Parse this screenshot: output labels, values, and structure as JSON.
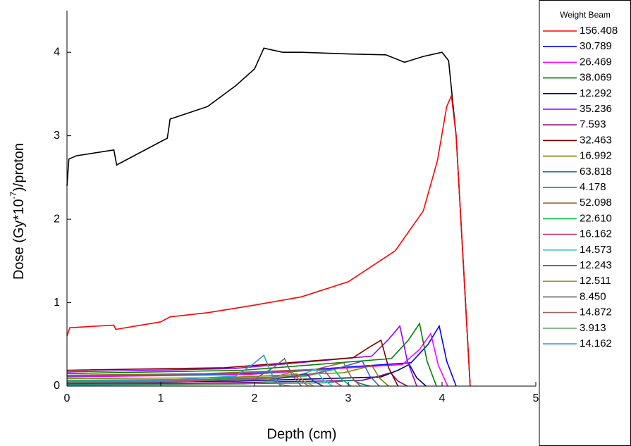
{
  "chart_data": {
    "type": "line",
    "x_label": "Depth (cm)",
    "y_label": {
      "before": "Dose (Gy*10",
      "superscript": "-7",
      "after": ")/proton"
    },
    "legend_title": "Weight Beam",
    "xlim": [
      0,
      5
    ],
    "xticks": [
      0,
      1,
      2,
      3,
      4,
      5
    ],
    "ylim": [
      0,
      4.5
    ],
    "yticks": [
      0,
      1,
      2,
      3,
      4
    ],
    "series": [
      {
        "color": "#000000",
        "x": [
          0,
          0.02,
          0.1,
          0.5,
          0.53,
          1.0,
          1.07,
          1.1,
          1.5,
          1.8,
          2.0,
          2.1,
          2.3,
          2.5,
          3.0,
          3.4,
          3.6,
          3.8,
          4.0,
          4.07,
          4.15,
          4.25,
          4.3
        ],
        "values": [
          2.4,
          2.72,
          2.76,
          2.83,
          2.65,
          2.93,
          2.97,
          3.2,
          3.35,
          3.6,
          3.8,
          4.05,
          4.0,
          4.0,
          3.98,
          3.97,
          3.88,
          3.95,
          4.0,
          3.9,
          3.0,
          1.0,
          0
        ]
      },
      {
        "name": "156.408",
        "color": "#ff0000",
        "x": [
          0,
          0.03,
          0.5,
          0.52,
          1.0,
          1.1,
          1.5,
          2.0,
          2.5,
          3.0,
          3.5,
          3.8,
          3.95,
          4.05,
          4.1,
          4.15,
          4.22,
          4.3
        ],
        "values": [
          0.6,
          0.7,
          0.73,
          0.68,
          0.77,
          0.83,
          0.88,
          0.97,
          1.07,
          1.25,
          1.62,
          2.1,
          2.7,
          3.35,
          3.48,
          3.0,
          1.6,
          0
        ]
      },
      {
        "name": "30.789",
        "color": "#0000ff",
        "x": [
          0,
          1.99,
          3.67,
          3.85,
          3.97,
          4.05,
          4.15
        ],
        "values": [
          0.12,
          0.15,
          0.28,
          0.5,
          0.72,
          0.3,
          0
        ]
      },
      {
        "name": "26.469",
        "color": "#ff00ff",
        "x": [
          0,
          1.94,
          3.58,
          3.76,
          3.88,
          3.96,
          4.06
        ],
        "values": [
          0.11,
          0.14,
          0.26,
          0.44,
          0.63,
          0.25,
          0
        ]
      },
      {
        "name": "38.069",
        "color": "#008000",
        "x": [
          0,
          1.88,
          3.46,
          3.64,
          3.76,
          3.84,
          3.94
        ],
        "values": [
          0.15,
          0.19,
          0.33,
          0.55,
          0.75,
          0.3,
          0
        ]
      },
      {
        "name": "12.292",
        "color": "#000080",
        "x": [
          0,
          1.83,
          3.35,
          3.53,
          3.65,
          3.73,
          3.83
        ],
        "values": [
          0.05,
          0.06,
          0.11,
          0.19,
          0.26,
          0.1,
          0
        ]
      },
      {
        "name": "35.236",
        "color": "#9900ff",
        "x": [
          0,
          1.78,
          3.25,
          3.43,
          3.55,
          3.63,
          3.73
        ],
        "values": [
          0.17,
          0.21,
          0.36,
          0.56,
          0.72,
          0.3,
          0
        ]
      },
      {
        "name": "7.593",
        "color": "#800080",
        "x": [
          0,
          1.73,
          3.15,
          3.33,
          3.45,
          3.53,
          3.63
        ],
        "values": [
          0.03,
          0.04,
          0.07,
          0.12,
          0.16,
          0.06,
          0
        ]
      },
      {
        "name": "32.463",
        "color": "#800000",
        "x": [
          0,
          1.68,
          3.05,
          3.23,
          3.35,
          3.43,
          3.53
        ],
        "values": [
          0.19,
          0.22,
          0.34,
          0.47,
          0.55,
          0.22,
          0
        ]
      },
      {
        "name": "16.992",
        "color": "#808000",
        "x": [
          0,
          1.63,
          2.95,
          3.13,
          3.25,
          3.33,
          3.43
        ],
        "values": [
          0.09,
          0.1,
          0.16,
          0.21,
          0.25,
          0.1,
          0
        ]
      },
      {
        "name": "63.818",
        "color": "#3366cc",
        "x": [
          0,
          1.58,
          2.85,
          3.03,
          3.15,
          3.23,
          3.33
        ],
        "values": [
          0.12,
          0.14,
          0.2,
          0.26,
          0.3,
          0.12,
          0
        ]
      },
      {
        "name": "4.178",
        "color": "#008080",
        "x": [
          0,
          1.53,
          2.75,
          2.93,
          3.05,
          3.13,
          3.23
        ],
        "values": [
          0.02,
          0.025,
          0.04,
          0.06,
          0.07,
          0.03,
          0
        ]
      },
      {
        "name": "52.098",
        "color": "#996633",
        "x": [
          0,
          1.48,
          2.65,
          2.83,
          2.95,
          3.03,
          3.13
        ],
        "values": [
          0.13,
          0.15,
          0.2,
          0.25,
          0.28,
          0.11,
          0
        ]
      },
      {
        "name": "22.610",
        "color": "#00c040",
        "x": [
          0,
          1.43,
          2.55,
          2.73,
          2.85,
          2.93,
          3.03
        ],
        "values": [
          0.07,
          0.08,
          0.12,
          0.17,
          0.2,
          0.08,
          0
        ]
      },
      {
        "name": "16.162",
        "color": "#cc3366",
        "x": [
          0,
          1.38,
          2.45,
          2.63,
          2.75,
          2.83,
          2.93
        ],
        "values": [
          0.06,
          0.07,
          0.11,
          0.15,
          0.18,
          0.07,
          0
        ]
      },
      {
        "name": "14.573",
        "color": "#33cccc",
        "x": [
          0,
          1.33,
          2.35,
          2.53,
          2.65,
          2.73,
          2.83
        ],
        "values": [
          0.05,
          0.06,
          0.1,
          0.15,
          0.2,
          0.08,
          0
        ]
      },
      {
        "name": "12.243",
        "color": "#333399",
        "x": [
          0,
          1.28,
          2.25,
          2.43,
          2.55,
          2.63,
          2.73
        ],
        "values": [
          0.05,
          0.06,
          0.09,
          0.12,
          0.15,
          0.06,
          0
        ]
      },
      {
        "name": "12.511",
        "color": "#999933",
        "x": [
          0,
          1.23,
          2.15,
          2.33,
          2.45,
          2.53,
          2.63
        ],
        "values": [
          0.05,
          0.06,
          0.09,
          0.12,
          0.15,
          0.06,
          0
        ]
      },
      {
        "name": "8.450",
        "color": "#666666",
        "x": [
          0,
          1.16,
          2.02,
          2.2,
          2.32,
          2.4,
          2.5
        ],
        "values": [
          0.04,
          0.05,
          0.1,
          0.22,
          0.33,
          0.13,
          0
        ]
      },
      {
        "name": "14.872",
        "color": "#996666",
        "x": [
          0,
          1.2,
          2.1,
          2.28,
          2.4,
          2.48,
          2.58
        ],
        "values": [
          0.05,
          0.06,
          0.09,
          0.13,
          0.17,
          0.07,
          0
        ]
      },
      {
        "name": "3.913",
        "color": "#669966",
        "x": [
          0,
          1.1,
          1.9,
          2.08,
          2.2,
          2.28,
          2.38
        ],
        "values": [
          0.01,
          0.015,
          0.025,
          0.04,
          0.05,
          0.02,
          0
        ]
      },
      {
        "name": "14.162",
        "color": "#3399cc",
        "x": [
          0,
          1.05,
          1.8,
          1.98,
          2.1,
          2.18,
          2.28
        ],
        "values": [
          0.06,
          0.07,
          0.12,
          0.26,
          0.37,
          0.15,
          0
        ]
      }
    ]
  }
}
